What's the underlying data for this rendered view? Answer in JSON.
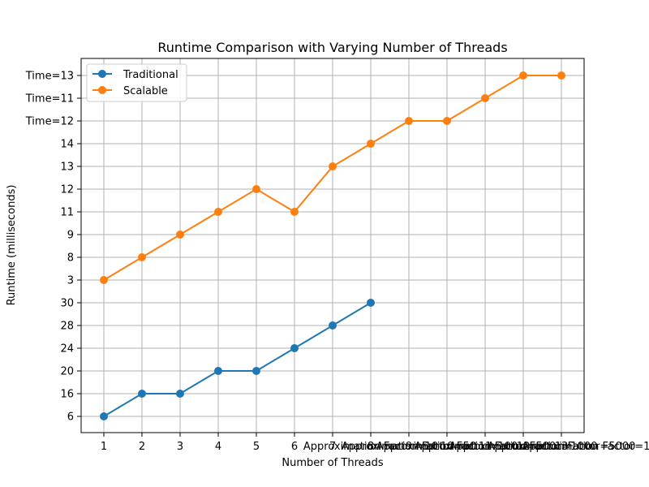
{
  "chart_data": {
    "type": "line",
    "title": "Runtime Comparison with Varying Number of Threads",
    "xlabel": "Number of Threads",
    "ylabel": "Runtime (milliseconds)",
    "x_categories": [
      "1",
      "2",
      "3",
      "4",
      "5",
      "6",
      "7",
      "8",
      "9",
      "10",
      "11",
      "12",
      "13"
    ],
    "x_tick_labels": [
      "1",
      "2",
      "3",
      "4",
      "5",
      "6",
      "7",
      "8",
      "9",
      "10",
      "11",
      "12",
      "13"
    ],
    "x_overflow_labels": [
      "Approximation Factor=10",
      "Approximation Factor=50",
      "Approximation Factor=100",
      "Approximation Factor=500",
      "Approximation Factor=1000",
      "Approximation Factor=5000",
      "Approximation Factor=10000"
    ],
    "y_categories": [
      "6",
      "16",
      "20",
      "24",
      "28",
      "30",
      "3",
      "8",
      "9",
      "11",
      "12",
      "13",
      "14",
      "Time=12",
      "Time=11",
      "Time=13"
    ],
    "grid": true,
    "legend_position": "top-left",
    "series": [
      {
        "name": "Traditional",
        "color": "#1f77b4",
        "x": [
          "1",
          "2",
          "3",
          "4",
          "5",
          "6",
          "7",
          "8"
        ],
        "values": [
          "6",
          "16",
          "16",
          "20",
          "20",
          "24",
          "28",
          "30"
        ]
      },
      {
        "name": "Scalable",
        "color": "#ff7f0e",
        "x": [
          "1",
          "2",
          "3",
          "4",
          "5",
          "6",
          "7",
          "8",
          "9",
          "10",
          "11",
          "12",
          "13"
        ],
        "values": [
          "3",
          "8",
          "9",
          "11",
          "12",
          "11",
          "13",
          "14",
          "Time=12",
          "Time=12",
          "Time=11",
          "Time=13",
          "Time=13"
        ]
      }
    ]
  }
}
